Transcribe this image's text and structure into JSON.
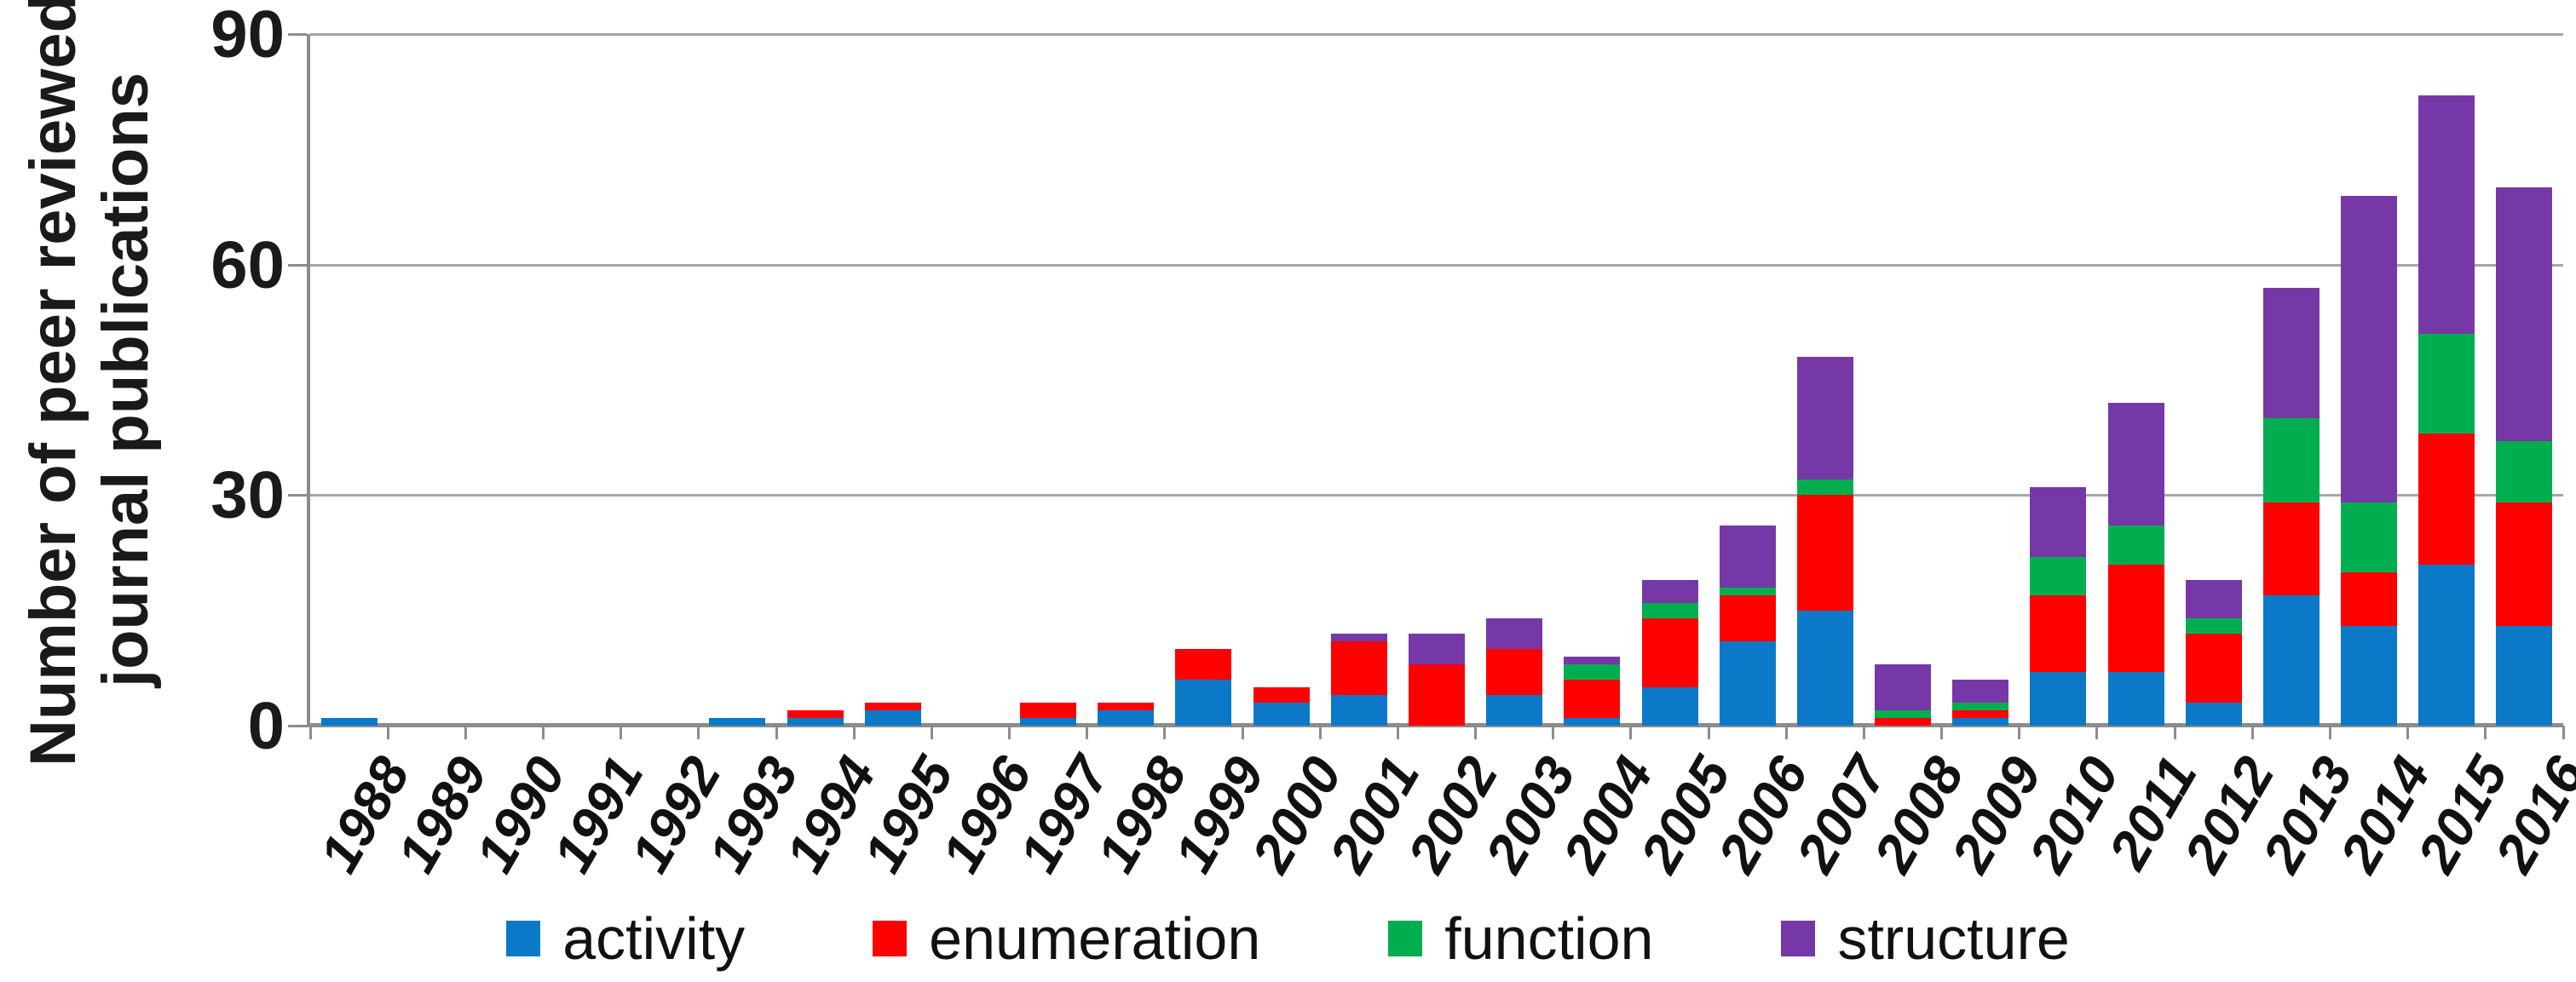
{
  "chart_data": {
    "type": "bar",
    "stacked": true,
    "title": "",
    "xlabel": "",
    "ylabel_line1": "Number of peer reviewed",
    "ylabel_line2": "journal publications",
    "ylim": [
      0,
      90
    ],
    "ytick_values": [
      90,
      60,
      30,
      0
    ],
    "grid": "horizontal",
    "legend_position": "bottom",
    "categories": [
      "1988",
      "1989",
      "1990",
      "1991",
      "1992",
      "1993",
      "1994",
      "1995",
      "1996",
      "1997",
      "1998",
      "1999",
      "2000",
      "2001",
      "2002",
      "2003",
      "2004",
      "2005",
      "2006",
      "2007",
      "2008",
      "2009",
      "2010",
      "2011",
      "2012",
      "2013",
      "2014",
      "2015",
      "2016"
    ],
    "series": [
      {
        "name": "activity",
        "color": "#0b79c7",
        "values": [
          1,
          0,
          0,
          0,
          0,
          1,
          1,
          2,
          0,
          1,
          2,
          6,
          3,
          4,
          0,
          4,
          1,
          5,
          11,
          15,
          0,
          1,
          7,
          7,
          3,
          17,
          13,
          21,
          13
        ]
      },
      {
        "name": "enumeration",
        "color": "#fe0000",
        "values": [
          0,
          0,
          0,
          0,
          0,
          0,
          1,
          1,
          0,
          2,
          1,
          4,
          2,
          7,
          8,
          6,
          5,
          9,
          6,
          15,
          1,
          1,
          10,
          14,
          9,
          12,
          7,
          17,
          16
        ]
      },
      {
        "name": "function",
        "color": "#00ae4f",
        "values": [
          0,
          0,
          0,
          0,
          0,
          0,
          0,
          0,
          0,
          0,
          0,
          0,
          0,
          0,
          0,
          0,
          2,
          2,
          1,
          2,
          1,
          1,
          5,
          5,
          2,
          11,
          9,
          13,
          8
        ]
      },
      {
        "name": "structure",
        "color": "#7638a6",
        "values": [
          0,
          0,
          0,
          0,
          0,
          0,
          0,
          0,
          0,
          0,
          0,
          0,
          0,
          1,
          4,
          4,
          1,
          3,
          8,
          16,
          6,
          3,
          9,
          16,
          5,
          17,
          40,
          31,
          33
        ]
      }
    ],
    "axis_color": "#8c8c8c",
    "gridline_color": "#a6a6a6"
  },
  "legend": {
    "items": [
      {
        "label": "activity",
        "color": "#0b79c7"
      },
      {
        "label": "enumeration",
        "color": "#fe0000"
      },
      {
        "label": "function",
        "color": "#00ae4f"
      },
      {
        "label": "structure",
        "color": "#7638a6"
      }
    ]
  }
}
